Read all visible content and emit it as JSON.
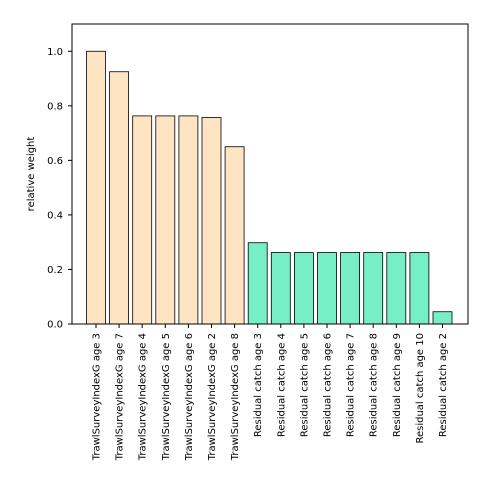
{
  "chart_data": {
    "type": "bar",
    "title": "",
    "xlabel": "",
    "ylabel": "relative weight",
    "ylim": [
      0,
      1.1
    ],
    "yticks": [
      "0.0",
      "0.2",
      "0.4",
      "0.6",
      "0.8",
      "1.0"
    ],
    "grid": false,
    "legend": "none",
    "colors": {
      "survey": "#FFE4C4",
      "residual": "#76EEC6",
      "edge": "#000000"
    },
    "categories": [
      "TrawlSurveyIndexG age 3",
      "TrawlSurveyIndexG age 7",
      "TrawlSurveyIndexG age 4",
      "TrawlSurveyIndexG age 5",
      "TrawlSurveyIndexG age 6",
      "TrawlSurveyIndexG age 2",
      "TrawlSurveyIndexG age 8",
      "Residual catch age 3",
      "Residual catch age 4",
      "Residual catch age 5",
      "Residual catch age 6",
      "Residual catch age 7",
      "Residual catch age 8",
      "Residual catch age 9",
      "Residual catch age 10",
      "Residual catch age 2"
    ],
    "values": [
      1.0,
      0.925,
      0.763,
      0.763,
      0.763,
      0.757,
      0.65,
      0.298,
      0.262,
      0.262,
      0.262,
      0.262,
      0.262,
      0.262,
      0.262,
      0.045
    ],
    "groups": [
      "survey",
      "survey",
      "survey",
      "survey",
      "survey",
      "survey",
      "survey",
      "residual",
      "residual",
      "residual",
      "residual",
      "residual",
      "residual",
      "residual",
      "residual",
      "residual"
    ]
  }
}
